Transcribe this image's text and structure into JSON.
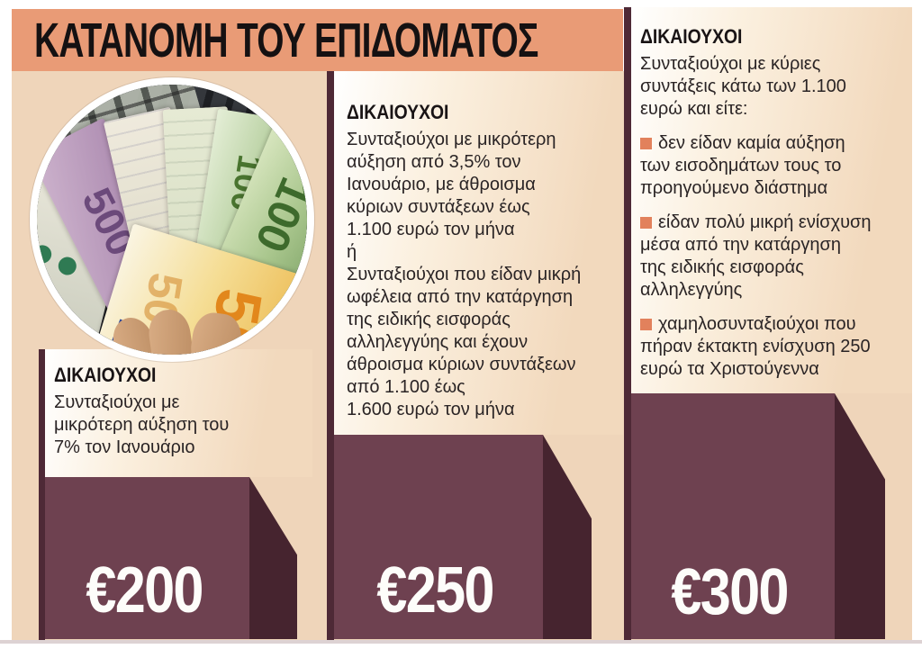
{
  "title": "ΚΑΤΑΝΟΜΗ ΤΟΥ ΕΠΙΔΟΜΑΤΟΣ",
  "columns": [
    {
      "header": "ΔΙΚΑΙΟΥΧΟΙ",
      "body": "Συνταξιούχοι με\nμικρότερη αύξηση του\n7% τον Ιανουάριο",
      "amount": "€200"
    },
    {
      "header": "ΔΙΚΑΙΟΥΧΟΙ",
      "paragraph1": "Συνταξιούχοι με μικρότερη\nαύξηση από 3,5% τον\nΙανουάριο, με άθροισμα\nκύριων συντάξεων έως\n1.100 ευρώ τον μήνα",
      "conjunction": "ή",
      "paragraph2": "Συνταξιούχοι που είδαν μικρή\nωφέλεια από την κατάργηση\nτης ειδικής εισφοράς\nαλληλεγγύης και έχουν\nάθροισμα κύριων συντάξεων\nαπό 1.100 έως\n1.600 ευρώ τον μήνα",
      "amount": "€250"
    },
    {
      "header": "ΔΙΚΑΙΟΥΧΟΙ",
      "intro": "Συνταξιούχοι με κύριες\nσυντάξεις κάτω των 1.100\nευρώ και είτε:",
      "bullets": [
        "δεν είδαν καμία αύξηση\nτων εισοδημάτων τους το\nπροηγούμενο διάστημα",
        "είδαν πολύ μικρή ενίσχυση\nμέσα από την κατάργηση\nτης ειδικής εισφοράς\nαλληλεγγύης",
        "χαμηλοσυνταξιούχοι που\nπήραν έκτακτη ενίσχυση 250\nευρώ τα Χριστούγεννα"
      ],
      "amount": "€300"
    }
  ],
  "photo": {
    "banknotes": [
      "500",
      "100",
      "100",
      "50"
    ]
  },
  "chart_data": {
    "type": "bar",
    "title": "ΚΑΤΑΝΟΜΗ ΤΟΥ ΕΠΙΔΟΜΑΤΟΣ",
    "unit": "ευρώ",
    "categories": [
      "Συνταξιούχοι με μικρότερη αύξηση του 7% τον Ιανουάριο",
      "Συνταξιούχοι με μικρότερη αύξηση από 3,5% τον Ιανουάριο, με άθροισμα κύριων συντάξεων έως 1.100 ευρώ τον μήνα ή συνταξιούχοι που είδαν μικρή ωφέλεια από την κατάργηση της ειδικής εισφοράς αλληλεγγύης και έχουν άθροισμα κύριων συντάξεων από 1.100 έως 1.600 ευρώ τον μήνα",
      "Συνταξιούχοι με κύριες συντάξεις κάτω των 1.100 ευρώ που είτε δεν είδαν καμία αύξηση των εισοδημάτων τους, είτε είδαν πολύ μικρή ενίσχυση από την κατάργηση της ειδικής εισφοράς αλληλεγγύης, είτε χαμηλοσυνταξιούχοι που πήραν έκτακτη ενίσχυση 250 ευρώ τα Χριστούγεννα"
    ],
    "values": [
      200,
      250,
      300
    ]
  },
  "colors": {
    "banner": "#e99b76",
    "background": "#efd5ba",
    "block_face": "#6e4150",
    "block_side": "#46242f",
    "divider_bar": "#4e2936",
    "bullet": "#e2815c",
    "amount_text": "#ffffff",
    "text": "#231f20"
  }
}
